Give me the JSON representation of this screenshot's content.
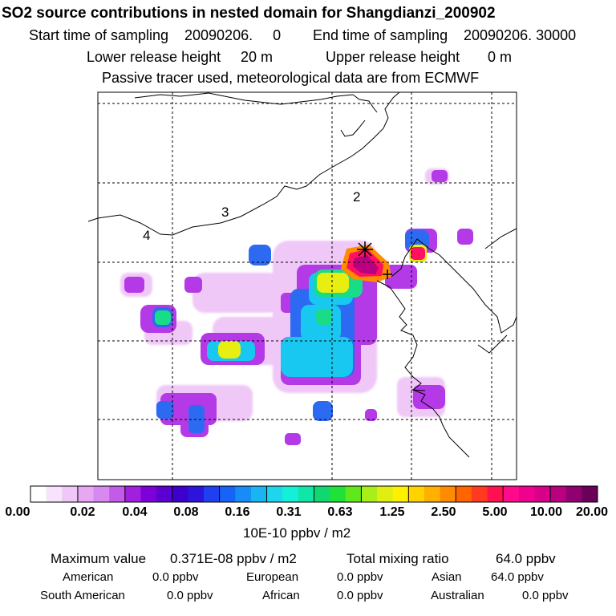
{
  "header": {
    "title": "SO2 source contributions in nested domain for Shangdianzi_200902",
    "start_label": "Start time of sampling",
    "start_value": "20090206.     0",
    "end_label": "End time of sampling",
    "end_value": "20090206. 30000",
    "lower_label": "Lower release height",
    "lower_value": "20 m",
    "upper_label": "Upper release height",
    "upper_value": "0 m",
    "note": "Passive tracer used, meteorological data are from ECMWF"
  },
  "map": {
    "region_labels": [
      "2",
      "3",
      "4"
    ],
    "receptor_marker": "star-marker"
  },
  "colorbar": {
    "labels": [
      "0.00",
      "0.02",
      "0.04",
      "0.08",
      "0.16",
      "0.31",
      "0.63",
      "1.25",
      "2.50",
      "5.00",
      "10.00",
      "20.00"
    ],
    "unit": "10E-10 ppbv / m2",
    "colors": [
      "#ffffff",
      "#f7e3fb",
      "#efc8f7",
      "#e6a8f3",
      "#d889ef",
      "#c45ae8",
      "#a21fe0",
      "#7d00d8",
      "#5a00d0",
      "#3d00cc",
      "#2d14dd",
      "#1f3ff0",
      "#1664f5",
      "#178cf5",
      "#19b4f2",
      "#1dd6ee",
      "#16efd8",
      "#10e6a8",
      "#10d870",
      "#20e03a",
      "#60e81c",
      "#a8ee18",
      "#e0ee12",
      "#fff000",
      "#ffd200",
      "#ffb000",
      "#ff8c00",
      "#ff6400",
      "#ff3a20",
      "#ff1050",
      "#ff0a8a",
      "#f0008e",
      "#d8008a",
      "#b80080",
      "#900070",
      "#6a0058"
    ]
  },
  "stats": {
    "max_label": "Maximum value",
    "max_value": "0.371E-08 ppbv / m2",
    "total_label": "Total mixing ratio",
    "total_value": "64.0 ppbv",
    "american_label": "American",
    "american_value": "0.0 ppbv",
    "european_label": "European",
    "european_value": "0.0 ppbv",
    "asian_label": "Asian",
    "asian_value": "64.0 ppbv",
    "south_american_label": "South American",
    "south_american_value": "0.0 ppbv",
    "african_label": "African",
    "african_value": "0.0 ppbv",
    "australian_label": "Australian",
    "australian_value": "0.0 ppbv"
  }
}
